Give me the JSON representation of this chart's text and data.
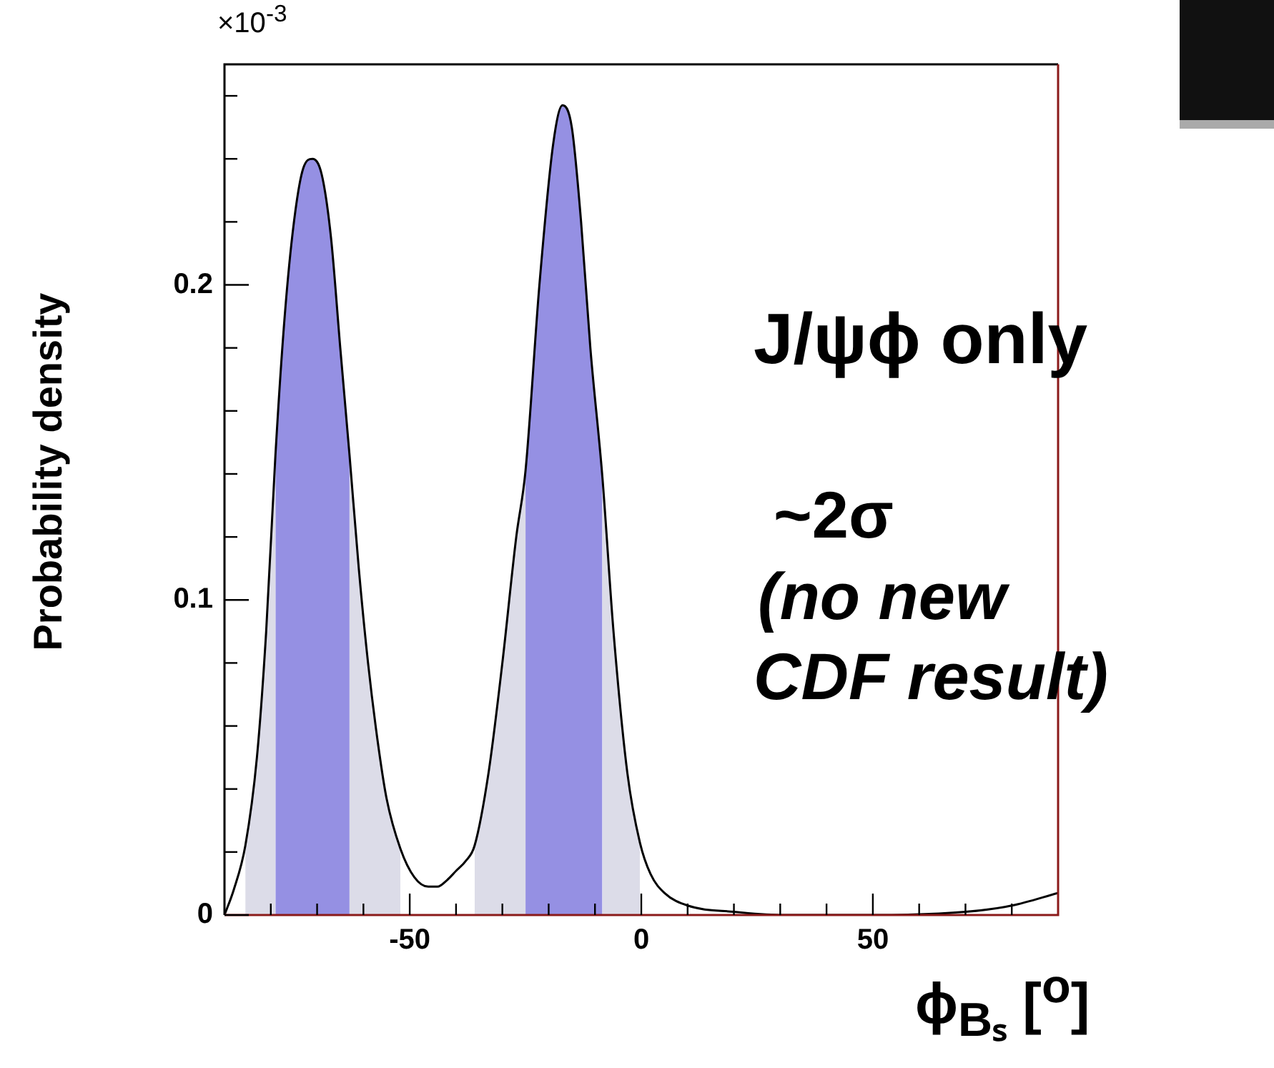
{
  "chart_data": {
    "type": "line",
    "xlabel": "ϕ$_{Bₛ}$ [$^{o}$]",
    "ylabel": "Probability density",
    "annotations": [
      "×10$^{-3}$",
      "J/ψϕ only",
      "~2σ",
      "(no new",
      "CDF result)"
    ],
    "series": [
      {
        "type": "area",
        "color": "#dcdce8",
        "x": [
          -85.5,
          -83,
          -81,
          -79
        ],
        "values": [
          0.022,
          0.05,
          0.09,
          0.146
        ]
      },
      {
        "type": "area",
        "color": "#dcdce8",
        "x": [
          -63,
          -61,
          -59,
          -57,
          -55,
          -52
        ],
        "values": [
          0.146,
          0.11,
          0.08,
          0.056,
          0.037,
          0.021
        ]
      },
      {
        "type": "area",
        "color": "#9590e3",
        "x": [
          -79,
          -77,
          -75,
          -73,
          -71,
          -69,
          -67,
          -65,
          -63
        ],
        "values": [
          0.146,
          0.19,
          0.22,
          0.237,
          0.24,
          0.235,
          0.215,
          0.18,
          0.146
        ]
      },
      {
        "type": "area",
        "color": "#dcdce8",
        "x": [
          -36,
          -33,
          -30,
          -27,
          -25
        ],
        "values": [
          0.022,
          0.045,
          0.08,
          0.12,
          0.141
        ]
      },
      {
        "type": "area",
        "color": "#dcdce8",
        "x": [
          -8.4,
          -6,
          -3,
          -0.3
        ],
        "values": [
          0.139,
          0.09,
          0.045,
          0.023
        ]
      },
      {
        "type": "area",
        "color": "#9590e3",
        "x": [
          -25,
          -22,
          -19,
          -17,
          -15,
          -13,
          -11,
          -8.4
        ],
        "values": [
          0.141,
          0.2,
          0.245,
          0.257,
          0.25,
          0.22,
          0.18,
          0.139
        ]
      },
      {
        "color": "#000000",
        "x": [
          -90,
          -88,
          -85.5,
          -83,
          -81,
          -79,
          -77,
          -75,
          -73,
          -71,
          -69,
          -67,
          -65,
          -63,
          -61,
          -59,
          -57,
          -55,
          -52,
          -49,
          -46,
          -44,
          -42,
          -40,
          -38,
          -36,
          -33,
          -30,
          -27,
          -25,
          -22,
          -19,
          -17,
          -15,
          -13,
          -11,
          -8.4,
          -6,
          -3,
          -0.3,
          2,
          5,
          10,
          20,
          30,
          50,
          70,
          80,
          90
        ],
        "values": [
          0,
          0.008,
          0.022,
          0.05,
          0.09,
          0.146,
          0.19,
          0.22,
          0.237,
          0.24,
          0.235,
          0.215,
          0.18,
          0.146,
          0.11,
          0.08,
          0.056,
          0.037,
          0.021,
          0.012,
          0.009,
          0.009,
          0.011,
          0.014,
          0.017,
          0.022,
          0.045,
          0.08,
          0.12,
          0.141,
          0.2,
          0.245,
          0.257,
          0.25,
          0.22,
          0.18,
          0.139,
          0.09,
          0.045,
          0.023,
          0.013,
          0.007,
          0.003,
          0.001,
          0,
          0,
          0.001,
          0.003,
          0.007
        ]
      }
    ],
    "xlim": [
      -90,
      90
    ],
    "xticks": [
      {
        "value": -80,
        "label": null
      },
      {
        "value": -70,
        "label": null
      },
      {
        "value": -60,
        "label": null
      },
      -50,
      {
        "value": -40,
        "label": null
      },
      {
        "value": -30,
        "label": null
      },
      {
        "value": -20,
        "label": null
      },
      {
        "value": -10,
        "label": null
      },
      0,
      {
        "value": 10,
        "label": null
      },
      {
        "value": 20,
        "label": null
      },
      {
        "value": 30,
        "label": null
      },
      {
        "value": 40,
        "label": null
      },
      50,
      {
        "value": 60,
        "label": null
      },
      {
        "value": 70,
        "label": null
      },
      {
        "value": 80,
        "label": null
      }
    ],
    "ylim": [
      0,
      0.27
    ],
    "yticks": [
      0,
      {
        "value": 0.02,
        "label": null
      },
      {
        "value": 0.04,
        "label": null
      },
      {
        "value": 0.06,
        "label": null
      },
      {
        "value": 0.08,
        "label": null
      },
      0.1,
      {
        "value": 0.12,
        "label": null
      },
      {
        "value": 0.14,
        "label": null
      },
      {
        "value": 0.16,
        "label": null
      },
      {
        "value": 0.18,
        "label": null
      },
      0.2,
      {
        "value": 0.22,
        "label": null
      },
      {
        "value": 0.24,
        "label": null
      },
      {
        "value": 0.26,
        "label": null
      }
    ],
    "grid": false,
    "legend": false,
    "marker": "none",
    "line_style": "solid"
  }
}
